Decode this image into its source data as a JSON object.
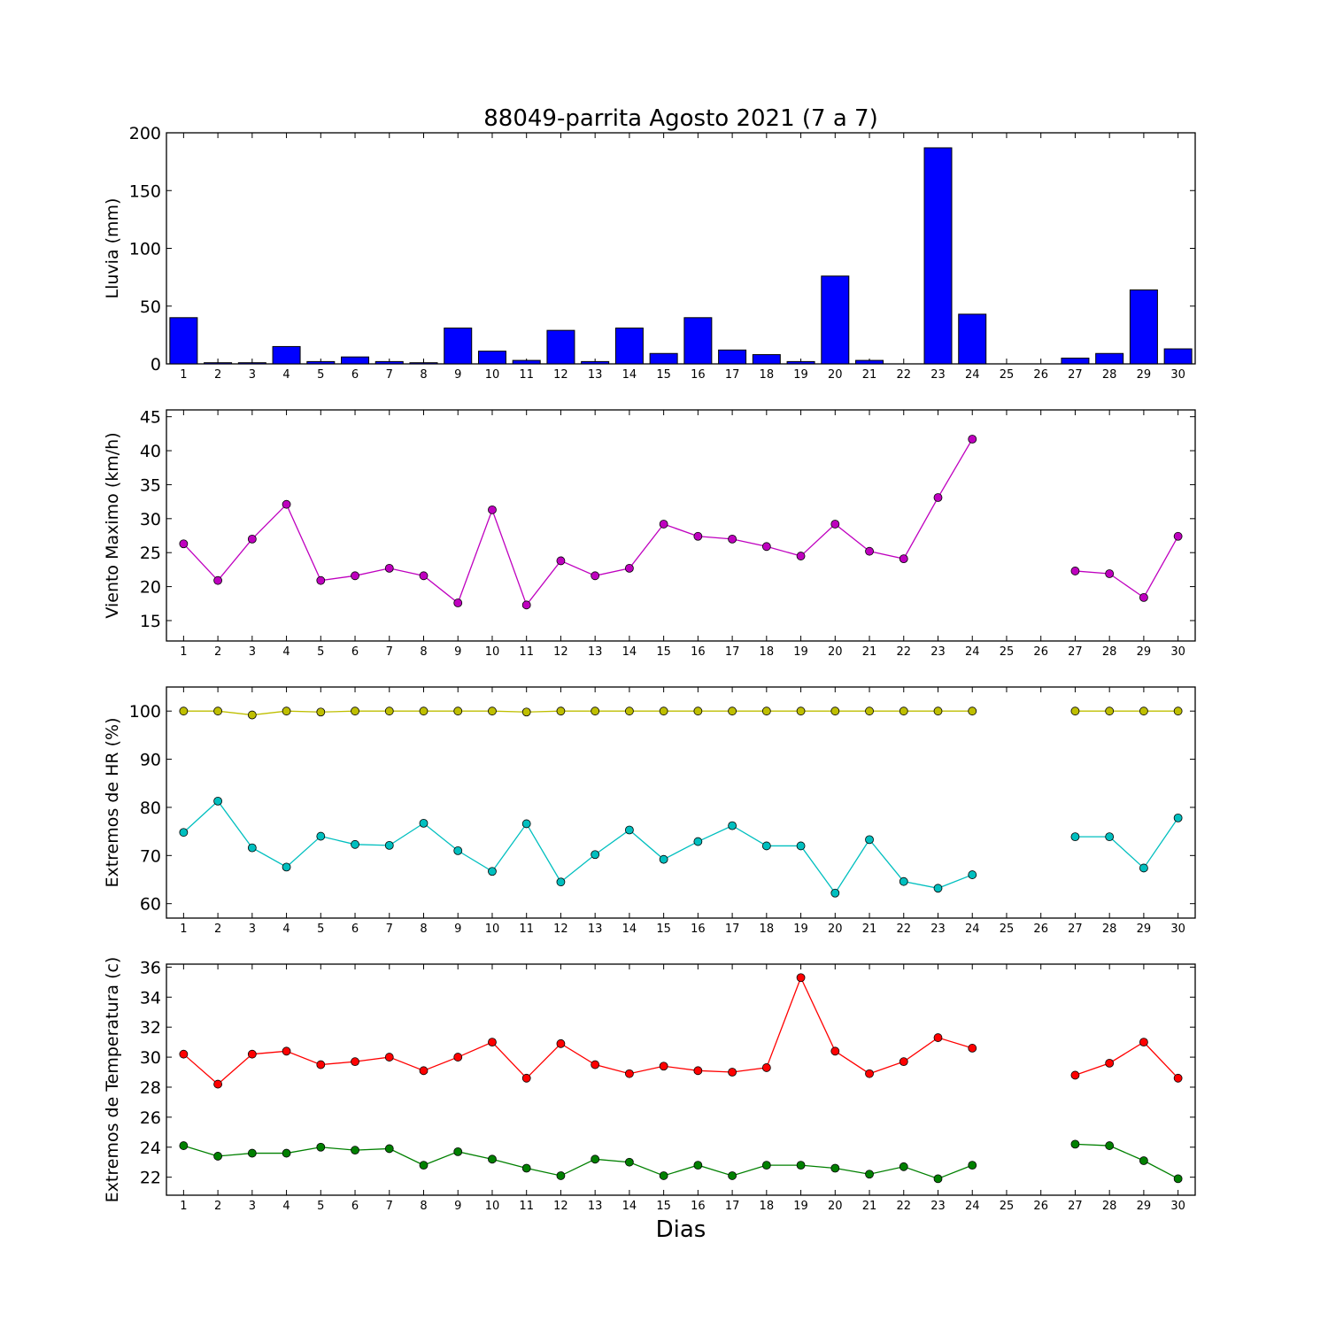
{
  "title": "88049-parrita Agosto 2021  (7 a 7)",
  "xlabel": "Dias",
  "colors": {
    "bar": "#0000ff",
    "wind": "#bf00bf",
    "hr_max": "#bfbf00",
    "hr_min": "#00bfbf",
    "temp_max": "#ff0000",
    "temp_min": "#008000"
  },
  "chart_data": [
    {
      "type": "bar",
      "ylabel": "Lluvia (mm)",
      "ylim": [
        0,
        200
      ],
      "yticks": [
        0,
        50,
        100,
        150,
        200
      ],
      "categories": [
        "1",
        "2",
        "3",
        "4",
        "5",
        "6",
        "7",
        "8",
        "9",
        "10",
        "11",
        "12",
        "13",
        "14",
        "15",
        "16",
        "17",
        "18",
        "19",
        "20",
        "21",
        "22",
        "23",
        "24",
        "25",
        "26",
        "27",
        "28",
        "29",
        "30"
      ],
      "series": [
        {
          "values": [
            40,
            1,
            1,
            15,
            2,
            6,
            2,
            1,
            31,
            11,
            3,
            29,
            2,
            31,
            9,
            40,
            12,
            8,
            2,
            76,
            3,
            0,
            187,
            43,
            0,
            0,
            5,
            9,
            64,
            13
          ]
        }
      ]
    },
    {
      "type": "line",
      "ylabel": "Viento Maximo (km/h)",
      "ylim": [
        12,
        46
      ],
      "yticks": [
        15,
        20,
        25,
        30,
        35,
        40,
        45
      ],
      "categories": [
        "1",
        "2",
        "3",
        "4",
        "5",
        "6",
        "7",
        "8",
        "9",
        "10",
        "11",
        "12",
        "13",
        "14",
        "15",
        "16",
        "17",
        "18",
        "19",
        "20",
        "21",
        "22",
        "23",
        "24",
        "25",
        "26",
        "27",
        "28",
        "29",
        "30"
      ],
      "series": [
        {
          "values": [
            26.3,
            20.9,
            27.0,
            32.1,
            20.9,
            21.6,
            22.7,
            21.6,
            17.6,
            31.3,
            17.3,
            23.8,
            21.6,
            22.7,
            29.2,
            27.4,
            27.0,
            25.9,
            24.5,
            29.2,
            25.2,
            24.1,
            33.1,
            41.7,
            null,
            null,
            22.3,
            21.9,
            18.4,
            27.4
          ]
        }
      ]
    },
    {
      "type": "line",
      "ylabel": "Extremos de HR (%)",
      "ylim": [
        57,
        105
      ],
      "yticks": [
        60,
        70,
        80,
        90,
        100
      ],
      "categories": [
        "1",
        "2",
        "3",
        "4",
        "5",
        "6",
        "7",
        "8",
        "9",
        "10",
        "11",
        "12",
        "13",
        "14",
        "15",
        "16",
        "17",
        "18",
        "19",
        "20",
        "21",
        "22",
        "23",
        "24",
        "25",
        "26",
        "27",
        "28",
        "29",
        "30"
      ],
      "series": [
        {
          "values": [
            100,
            100,
            99.2,
            100,
            99.8,
            100,
            100,
            100,
            100,
            100,
            99.8,
            100,
            100,
            100,
            100,
            100,
            100,
            100,
            100,
            100,
            100,
            100,
            100,
            100,
            null,
            null,
            100,
            100,
            100,
            100
          ]
        },
        {
          "values": [
            74.8,
            81.3,
            71.6,
            67.6,
            74.0,
            72.3,
            72.1,
            76.7,
            71.0,
            66.7,
            76.6,
            64.5,
            70.2,
            75.3,
            69.2,
            72.9,
            76.2,
            72.0,
            72.0,
            62.2,
            73.3,
            64.6,
            63.2,
            66.0,
            null,
            null,
            73.9,
            73.9,
            67.4,
            77.8
          ]
        }
      ]
    },
    {
      "type": "line",
      "ylabel": "Extremos de Temperatura (c)",
      "ylim": [
        20.8,
        36.2
      ],
      "yticks": [
        22,
        24,
        26,
        28,
        30,
        32,
        34,
        36
      ],
      "categories": [
        "1",
        "2",
        "3",
        "4",
        "5",
        "6",
        "7",
        "8",
        "9",
        "10",
        "11",
        "12",
        "13",
        "14",
        "15",
        "16",
        "17",
        "18",
        "19",
        "20",
        "21",
        "22",
        "23",
        "24",
        "25",
        "26",
        "27",
        "28",
        "29",
        "30"
      ],
      "series": [
        {
          "values": [
            30.2,
            28.2,
            30.2,
            30.4,
            29.5,
            29.7,
            30.0,
            29.1,
            30.0,
            31.0,
            28.6,
            30.9,
            29.5,
            28.9,
            29.4,
            29.1,
            29.0,
            29.3,
            35.3,
            30.4,
            28.9,
            29.7,
            31.3,
            30.6,
            null,
            null,
            28.8,
            29.6,
            31.0,
            28.6
          ]
        },
        {
          "values": [
            24.1,
            23.4,
            23.6,
            23.6,
            24.0,
            23.8,
            23.9,
            22.8,
            23.7,
            23.2,
            22.6,
            22.1,
            23.2,
            23.0,
            22.1,
            22.8,
            22.1,
            22.8,
            22.8,
            22.6,
            22.2,
            22.7,
            21.9,
            22.8,
            null,
            null,
            24.2,
            24.1,
            23.1,
            21.9
          ]
        }
      ]
    }
  ]
}
